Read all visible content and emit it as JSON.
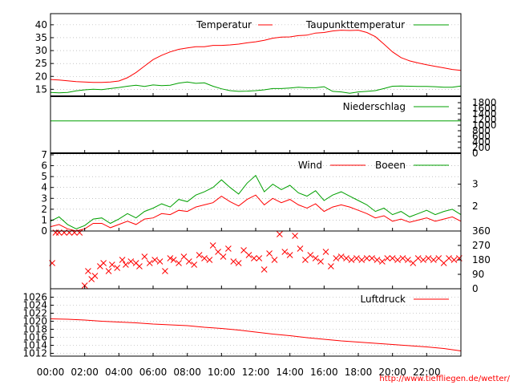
{
  "chart_data": {
    "type": "multi-panel line chart",
    "colors": {
      "red": "#ff0000",
      "green": "#00a000",
      "grid": "#a0a0a0",
      "frame": "#000000",
      "url": "#ff0000"
    },
    "time_axis": {
      "ticks": [
        "00:00",
        "02:00",
        "04:00",
        "06:00",
        "08:00",
        "10:00",
        "12:00",
        "14:00",
        "16:00",
        "18:00",
        "20:00",
        "22:00"
      ],
      "range_hours": [
        0,
        24
      ]
    },
    "url_text": "http://www.tiefflieg­en.de/wetter/",
    "panels": {
      "temperature": {
        "ylim": [
          12,
          44
        ],
        "yticks": [
          "15",
          "20",
          "25",
          "30",
          "35",
          "40"
        ],
        "yticks_values": [
          15,
          20,
          25,
          30,
          35,
          40
        ],
        "grid": true,
        "legend": "top-right",
        "series": [
          {
            "name": "Temperatur",
            "color": "red",
            "x": [
              0,
              0.5,
              1,
              1.5,
              2,
              2.5,
              3,
              3.5,
              4,
              4.5,
              5,
              5.5,
              6,
              6.5,
              7,
              7.5,
              8,
              8.5,
              9,
              9.5,
              10,
              10.5,
              11,
              11.5,
              12,
              12.5,
              13,
              13.5,
              14,
              14.5,
              15,
              15.5,
              16,
              16.5,
              17,
              17.5,
              18,
              18.5,
              19,
              19.5,
              20,
              20.5,
              21,
              21.5,
              22,
              22.5,
              23,
              23.5,
              24
            ],
            "y": [
              18.8,
              18.6,
              18.3,
              18,
              17.8,
              17.7,
              17.7,
              17.8,
              18.2,
              19.5,
              21.5,
              24,
              26.5,
              28.2,
              29.5,
              30.5,
              31,
              31.5,
              31.5,
              32,
              32,
              32.2,
              32.5,
              33,
              33.4,
              34,
              34.8,
              35.2,
              35.3,
              35.8,
              36,
              36.8,
              37,
              37.6,
              37.9,
              37.8,
              37.9,
              37,
              35.4,
              32.5,
              29.5,
              27.3,
              26,
              25.2,
              24.5,
              23.9,
              23.3,
              22.7,
              22.3
            ]
          },
          {
            "name": "Taupunkttemperatur",
            "color": "green",
            "x": [
              0,
              0.5,
              1,
              1.5,
              2,
              2.5,
              3,
              3.5,
              4,
              4.5,
              5,
              5.5,
              6,
              6.5,
              7,
              7.5,
              8,
              8.5,
              9,
              9.5,
              10,
              10.5,
              11,
              11.5,
              12,
              12.5,
              13,
              13.5,
              14,
              14.5,
              15,
              15.5,
              16,
              16.5,
              17,
              17.5,
              18,
              18.5,
              19,
              19.5,
              20,
              20.5,
              21,
              21.5,
              22,
              22.5,
              23,
              23.5,
              24
            ],
            "y": [
              13.8,
              13.6,
              13.8,
              14.4,
              14.8,
              15,
              14.9,
              15.3,
              15.7,
              16.2,
              16.6,
              16.1,
              16.7,
              16.4,
              16.6,
              17.4,
              17.8,
              17.3,
              17.5,
              16.2,
              15.2,
              14.5,
              14.2,
              14.3,
              14.5,
              14.8,
              15.3,
              15.3,
              15.5,
              15.8,
              15.6,
              15.6,
              16,
              14.2,
              14,
              13.5,
              14,
              14.2,
              14.5,
              15.3,
              16.2,
              16.3,
              16.2,
              16.1,
              16.1,
              16,
              15.8,
              15.8,
              16.3
            ]
          }
        ]
      },
      "precipitation": {
        "ylim": [
          0,
          1800
        ],
        "yticks": [
          "0",
          "200",
          "400",
          "600",
          "800",
          "1000",
          "1200",
          "1400",
          "1600",
          "1800"
        ],
        "yticks_values": [
          0,
          200,
          400,
          600,
          800,
          1000,
          1200,
          1400,
          1600,
          1800
        ],
        "legend": "top-right",
        "series": [
          {
            "name": "Niederschlag",
            "color": "green",
            "x": [
              0,
              24
            ],
            "y": [
              1150,
              1150
            ]
          }
        ]
      },
      "wind": {
        "ylim": [
          0,
          7
        ],
        "yticks": [
          "0",
          "1",
          "2",
          "3",
          "4",
          "5",
          "6",
          "7"
        ],
        "yticks_values": [
          0,
          1,
          2,
          3,
          4,
          5,
          6,
          7
        ],
        "right_ticks": [
          "2",
          "3"
        ],
        "right_ticks_values": [
          2.3,
          4.3
        ],
        "grid": true,
        "legend": "top-right",
        "series": [
          {
            "name": "Wind",
            "color": "red",
            "x": [
              0,
              0.5,
              1,
              1.5,
              2,
              2.5,
              3,
              3.5,
              4,
              4.5,
              5,
              5.5,
              6,
              6.5,
              7,
              7.5,
              8,
              8.5,
              9,
              9.5,
              10,
              10.5,
              11,
              11.5,
              12,
              12.5,
              13,
              13.5,
              14,
              14.5,
              15,
              15.5,
              16,
              16.5,
              17,
              17.5,
              18,
              18.5,
              19,
              19.5,
              20,
              20.5,
              21,
              21.5,
              22,
              22.5,
              23,
              23.5,
              24
            ],
            "y": [
              0.4,
              0.6,
              0.2,
              0,
              0.2,
              0.7,
              0.7,
              0.3,
              0.6,
              0.9,
              0.6,
              1.1,
              1.2,
              1.6,
              1.5,
              1.9,
              1.8,
              2.2,
              2.4,
              2.6,
              3.2,
              2.7,
              2.3,
              2.9,
              3.3,
              2.4,
              3,
              2.6,
              2.9,
              2.4,
              2.1,
              2.5,
              1.8,
              2.2,
              2.4,
              2.2,
              1.9,
              1.6,
              1.2,
              1.4,
              0.9,
              1.1,
              0.8,
              1,
              1.2,
              0.9,
              1.1,
              1.3,
              0.9
            ]
          },
          {
            "name": "Boeen",
            "color": "green",
            "x": [
              0,
              0.5,
              1,
              1.5,
              2,
              2.5,
              3,
              3.5,
              4,
              4.5,
              5,
              5.5,
              6,
              6.5,
              7,
              7.5,
              8,
              8.5,
              9,
              9.5,
              10,
              10.5,
              11,
              11.5,
              12,
              12.5,
              13,
              13.5,
              14,
              14.5,
              15,
              15.5,
              16,
              16.5,
              17,
              17.5,
              18,
              18.5,
              19,
              19.5,
              20,
              20.5,
              21,
              21.5,
              22,
              22.5,
              23,
              23.5,
              24
            ],
            "y": [
              0.9,
              1.3,
              0.6,
              0.2,
              0.5,
              1.1,
              1.2,
              0.7,
              1.1,
              1.6,
              1.2,
              1.8,
              2.1,
              2.5,
              2.2,
              2.9,
              2.7,
              3.3,
              3.6,
              4,
              4.7,
              4,
              3.4,
              4.4,
              5.1,
              3.6,
              4.3,
              3.8,
              4.2,
              3.5,
              3.2,
              3.7,
              2.8,
              3.3,
              3.6,
              3.2,
              2.8,
              2.4,
              1.8,
              2.1,
              1.5,
              1.8,
              1.3,
              1.6,
              1.9,
              1.5,
              1.8,
              2,
              1.5
            ]
          }
        ]
      },
      "wind_direction": {
        "ylim": [
          0,
          360
        ],
        "yticks": [
          "0",
          "90",
          "180",
          "270",
          "360"
        ],
        "yticks_values": [
          0,
          90,
          180,
          270,
          360
        ],
        "marker": "x",
        "series": [
          {
            "name": "",
            "color": "red",
            "x": [
              0.1,
              0.3,
              0.5,
              0.8,
              1.1,
              1.4,
              1.7,
              2,
              2.2,
              2.4,
              2.6,
              2.9,
              3.1,
              3.4,
              3.6,
              3.9,
              4.2,
              4.4,
              4.7,
              5,
              5.2,
              5.5,
              5.8,
              6.1,
              6.4,
              6.7,
              7,
              7.2,
              7.5,
              7.8,
              8.1,
              8.4,
              8.7,
              9,
              9.3,
              9.5,
              9.8,
              10.1,
              10.4,
              10.7,
              11,
              11.3,
              11.6,
              11.9,
              12.2,
              12.5,
              12.8,
              13.1,
              13.4,
              13.7,
              14,
              14.3,
              14.6,
              14.9,
              15.2,
              15.5,
              15.8,
              16.1,
              16.4,
              16.7,
              17,
              17.3,
              17.6,
              17.9,
              18.2,
              18.5,
              18.8,
              19.1,
              19.4,
              19.7,
              20,
              20.3,
              20.6,
              20.9,
              21.2,
              21.5,
              21.8,
              22.1,
              22.4,
              22.7,
              23,
              23.3,
              23.6,
              23.9
            ],
            "y": [
              160,
              350,
              350,
              350,
              350,
              350,
              350,
              20,
              110,
              60,
              80,
              140,
              160,
              110,
              150,
              130,
              180,
              150,
              170,
              160,
              140,
              200,
              160,
              180,
              170,
              110,
              190,
              180,
              160,
              200,
              170,
              150,
              210,
              190,
              180,
              270,
              230,
              200,
              250,
              170,
              160,
              240,
              210,
              190,
              190,
              120,
              220,
              180,
              340,
              230,
              210,
              330,
              250,
              180,
              210,
              190,
              170,
              230,
              140,
              190,
              200,
              190,
              180,
              190,
              180,
              190,
              190,
              180,
              170,
              190,
              190,
              180,
              190,
              180,
              160,
              190,
              180,
              190,
              180,
              190,
              160,
              190,
              180,
              190
            ]
          }
        ]
      },
      "pressure": {
        "ylim": [
          1011.5,
          1027.5
        ],
        "yticks": [
          "1012",
          "1014",
          "1016",
          "1018",
          "1020",
          "1022",
          "1024",
          "1026"
        ],
        "yticks_values": [
          1012,
          1014,
          1016,
          1018,
          1020,
          1022,
          1024,
          1026
        ],
        "grid": true,
        "legend": "top-right",
        "series": [
          {
            "name": "Luftdruck",
            "color": "red",
            "x": [
              0,
              1,
              2,
              3,
              4,
              5,
              6,
              7,
              8,
              9,
              10,
              11,
              12,
              13,
              14,
              15,
              16,
              17,
              18,
              19,
              20,
              21,
              22,
              23,
              24
            ],
            "y": [
              1020.6,
              1020.5,
              1020.3,
              1020,
              1019.8,
              1019.6,
              1019.3,
              1019.1,
              1018.9,
              1018.5,
              1018.2,
              1017.8,
              1017.3,
              1016.8,
              1016.4,
              1015.9,
              1015.5,
              1015.1,
              1014.8,
              1014.5,
              1014.2,
              1013.9,
              1013.6,
              1013.2,
              1012.6
            ]
          }
        ]
      }
    }
  }
}
